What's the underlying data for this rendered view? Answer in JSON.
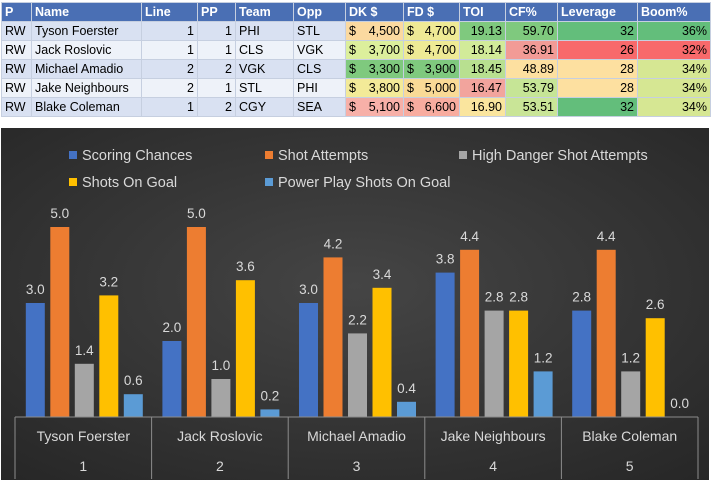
{
  "table": {
    "headers": [
      "P",
      "Name",
      "Line",
      "PP",
      "Team",
      "Opp",
      "DK $",
      "FD $",
      "TOI",
      "CF%",
      "Leverage",
      "Boom%"
    ],
    "currency": "$",
    "rows": [
      {
        "p": "RW",
        "name": "Tyson Foerster",
        "line": "1",
        "pp": "1",
        "team": "PHI",
        "opp": "STL",
        "dk": "4,500",
        "fd": "4,700",
        "toi": "19.13",
        "cf": "59.70",
        "leverage": "32",
        "boom": "36%"
      },
      {
        "p": "RW",
        "name": "Jack Roslovic",
        "line": "1",
        "pp": "1",
        "team": "CLS",
        "opp": "VGK",
        "dk": "3,700",
        "fd": "4,700",
        "toi": "18.14",
        "cf": "36.91",
        "leverage": "26",
        "boom": "32%"
      },
      {
        "p": "RW",
        "name": "Michael Amadio",
        "line": "2",
        "pp": "2",
        "team": "VGK",
        "opp": "CLS",
        "dk": "3,300",
        "fd": "3,900",
        "toi": "18.45",
        "cf": "48.89",
        "leverage": "28",
        "boom": "34%"
      },
      {
        "p": "RW",
        "name": "Jake Neighbours",
        "line": "2",
        "pp": "1",
        "team": "STL",
        "opp": "PHI",
        "dk": "3,800",
        "fd": "5,000",
        "toi": "16.47",
        "cf": "53.79",
        "leverage": "28",
        "boom": "34%"
      },
      {
        "p": "RW",
        "name": "Blake Coleman",
        "line": "1",
        "pp": "2",
        "team": "CGY",
        "opp": "SEA",
        "dk": "5,100",
        "fd": "6,600",
        "toi": "16.90",
        "cf": "53.51",
        "leverage": "32",
        "boom": "34%"
      }
    ],
    "cell_colors": {
      "dk": [
        "#fbd9a0",
        "#dcef9c",
        "#7fc97e",
        "#f3ea98",
        "#f7b0a8"
      ],
      "fd": [
        "#eeea95",
        "#eeea95",
        "#7fc97e",
        "#f9da96",
        "#f8ac9f"
      ],
      "toi": [
        "#7fc97e",
        "#d2eb99",
        "#b8e090",
        "#f2a49d",
        "#fae59e"
      ],
      "cf": [
        "#7fc97e",
        "#f29b96",
        "#fde0a0",
        "#c6e596",
        "#c9e597"
      ],
      "leverage": [
        "#63be7b",
        "#f8696b",
        "#fde0a0",
        "#fde0a0",
        "#63be7b"
      ],
      "boom": [
        "#63be7b",
        "#f8696b",
        "#d6e793",
        "#d6e793",
        "#d6e793"
      ]
    }
  },
  "chart_data": {
    "type": "bar",
    "title": "",
    "xlabel": "",
    "ylabel": "",
    "ylim": [
      0,
      5.5
    ],
    "categories": [
      "Tyson Foerster",
      "Jack Roslovic",
      "Michael Amadio",
      "Jake Neighbours",
      "Blake Coleman"
    ],
    "category_numbers": [
      "1",
      "2",
      "3",
      "4",
      "5"
    ],
    "legend_position": "top",
    "series": [
      {
        "name": "Scoring Chances",
        "color": "#4472c4",
        "values": [
          3.0,
          2.0,
          3.0,
          3.8,
          2.8
        ]
      },
      {
        "name": "Shot Attempts",
        "color": "#ed7d31",
        "values": [
          5.0,
          5.0,
          4.2,
          4.4,
          4.4
        ]
      },
      {
        "name": "High Danger Shot Attempts",
        "color": "#a5a5a5",
        "values": [
          1.4,
          1.0,
          2.2,
          2.8,
          1.2
        ]
      },
      {
        "name": "Shots On Goal",
        "color": "#ffc000",
        "values": [
          3.2,
          3.6,
          3.4,
          2.8,
          2.6
        ]
      },
      {
        "name": "Power Play Shots On Goal",
        "color": "#5b9bd5",
        "values": [
          0.6,
          0.2,
          0.4,
          1.2,
          0.0
        ]
      }
    ],
    "background": "#333333",
    "label_color": "#d9d9d9"
  }
}
